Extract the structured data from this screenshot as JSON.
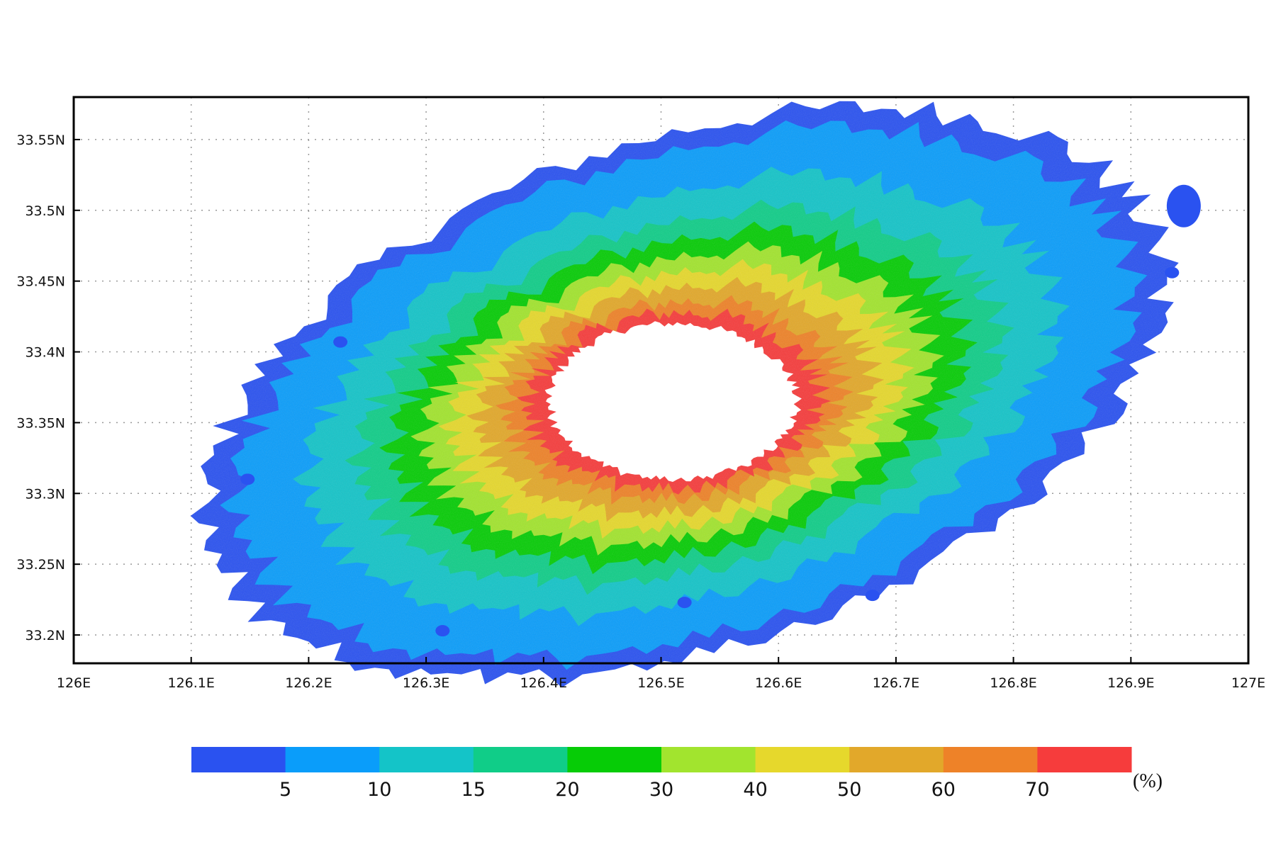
{
  "map": {
    "lon_range": [
      126.0,
      127.0
    ],
    "lat_range": [
      33.18,
      33.58
    ],
    "lon_ticks": [
      {
        "value": 126.0,
        "label": "126E"
      },
      {
        "value": 126.1,
        "label": "126.1E"
      },
      {
        "value": 126.2,
        "label": "126.2E"
      },
      {
        "value": 126.3,
        "label": "126.3E"
      },
      {
        "value": 126.4,
        "label": "126.4E"
      },
      {
        "value": 126.5,
        "label": "126.5E"
      },
      {
        "value": 126.6,
        "label": "126.6E"
      },
      {
        "value": 126.7,
        "label": "126.7E"
      },
      {
        "value": 126.8,
        "label": "126.8E"
      },
      {
        "value": 126.9,
        "label": "126.9E"
      },
      {
        "value": 127.0,
        "label": "127E"
      }
    ],
    "lat_ticks": [
      {
        "value": 33.2,
        "label": "33.2N"
      },
      {
        "value": 33.25,
        "label": "33.25N"
      },
      {
        "value": 33.3,
        "label": "33.3N"
      },
      {
        "value": 33.35,
        "label": "33.35N"
      },
      {
        "value": 33.4,
        "label": "33.4N"
      },
      {
        "value": 33.45,
        "label": "33.45N"
      },
      {
        "value": 33.5,
        "label": "33.5N"
      },
      {
        "value": 33.55,
        "label": "33.55N"
      }
    ],
    "grid": "dotted",
    "field": {
      "center_lon": 126.52,
      "center_lat": 33.37,
      "outer_half_width_lon": 0.42,
      "outer_half_height_lat": 0.18,
      "tilt_deg": 18,
      "hole_center_lon": 126.51,
      "hole_center_lat": 33.365,
      "hole_half_width_lon": 0.105,
      "hole_half_height_lat": 0.055
    },
    "islets": [
      {
        "lon": 126.148,
        "lat": 33.31
      },
      {
        "lon": 126.227,
        "lat": 33.407
      },
      {
        "lon": 126.314,
        "lat": 33.203
      },
      {
        "lon": 126.52,
        "lat": 33.223
      },
      {
        "lon": 126.68,
        "lat": 33.228
      },
      {
        "lon": 126.945,
        "lat": 33.503
      },
      {
        "lon": 126.935,
        "lat": 33.456
      }
    ]
  },
  "colorbar": {
    "colors": [
      "#2a52f0",
      "#0a9dfa",
      "#14c4c8",
      "#10cd88",
      "#06cc06",
      "#a2e42e",
      "#e6d82c",
      "#e2a82a",
      "#ee8228",
      "#f63c3c"
    ],
    "labels": [
      "5",
      "10",
      "15",
      "20",
      "30",
      "40",
      "50",
      "60",
      "70"
    ],
    "unit": "(%)"
  }
}
